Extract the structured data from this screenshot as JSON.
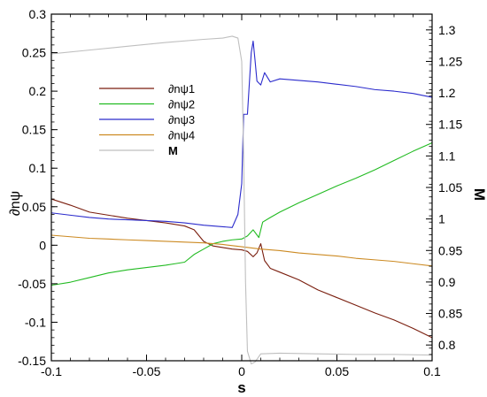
{
  "chart_data": {
    "type": "line",
    "title": "",
    "xlabel": "s",
    "ylabel": "∂nψ",
    "y2label": "M",
    "xlim": [
      -0.1,
      0.1
    ],
    "ylim": [
      -0.15,
      0.3
    ],
    "y2lim": [
      0.775,
      1.325
    ],
    "x_ticks": [
      -0.1,
      -0.05,
      0,
      0.05,
      0.1
    ],
    "x_tick_labels": [
      "-0.1",
      "-0.05",
      "0",
      "0.05",
      "0.1"
    ],
    "y_ticks": [
      -0.15,
      -0.1,
      -0.05,
      0,
      0.05,
      0.1,
      0.15,
      0.2,
      0.25,
      0.3
    ],
    "y_tick_labels": [
      "-0.15",
      "-0.1",
      "-0.05",
      "0",
      "0.05",
      "0.1",
      "0.15",
      "0.2",
      "0.25",
      "0.3"
    ],
    "y2_ticks": [
      0.8,
      0.85,
      0.9,
      0.95,
      1.0,
      1.05,
      1.1,
      1.15,
      1.2,
      1.25,
      1.3
    ],
    "y2_tick_labels": [
      "0.8",
      "0.85",
      "0.9",
      "0.95",
      "1",
      "1.05",
      "1.1",
      "1.15",
      "1.2",
      "1.25",
      "1.3"
    ],
    "grid": false,
    "legend_position": "upper-left",
    "series": [
      {
        "name": "∂nψ1",
        "axis": "left",
        "color": "#7a1e0e",
        "x": [
          -0.1,
          -0.09,
          -0.08,
          -0.07,
          -0.06,
          -0.05,
          -0.04,
          -0.03,
          -0.025,
          -0.02,
          -0.015,
          -0.01,
          -0.005,
          0.0,
          0.003,
          0.006,
          0.008,
          0.01,
          0.012,
          0.015,
          0.02,
          0.03,
          0.04,
          0.05,
          0.06,
          0.07,
          0.08,
          0.09,
          0.1
        ],
        "y": [
          0.06,
          0.052,
          0.043,
          0.039,
          0.035,
          0.032,
          0.029,
          0.025,
          0.02,
          0.005,
          -0.001,
          -0.003,
          -0.005,
          -0.006,
          -0.008,
          -0.015,
          -0.01,
          0.002,
          -0.02,
          -0.03,
          -0.035,
          -0.045,
          -0.058,
          -0.068,
          -0.078,
          -0.088,
          -0.097,
          -0.108,
          -0.12
        ]
      },
      {
        "name": "∂nψ2",
        "axis": "left",
        "color": "#22bb22",
        "x": [
          -0.1,
          -0.09,
          -0.08,
          -0.07,
          -0.06,
          -0.05,
          -0.04,
          -0.035,
          -0.03,
          -0.025,
          -0.02,
          -0.015,
          -0.01,
          -0.005,
          0.0,
          0.003,
          0.006,
          0.009,
          0.011,
          0.015,
          0.02,
          0.03,
          0.04,
          0.05,
          0.06,
          0.07,
          0.08,
          0.09,
          0.1
        ],
        "y": [
          -0.052,
          -0.048,
          -0.042,
          -0.036,
          -0.032,
          -0.029,
          -0.026,
          -0.024,
          -0.022,
          -0.012,
          -0.005,
          0.002,
          0.005,
          0.007,
          0.008,
          0.012,
          0.02,
          0.01,
          0.03,
          0.036,
          0.043,
          0.055,
          0.066,
          0.077,
          0.087,
          0.098,
          0.11,
          0.122,
          0.133
        ]
      },
      {
        "name": "∂nψ3",
        "axis": "left",
        "color": "#2b2bcc",
        "x": [
          -0.1,
          -0.09,
          -0.08,
          -0.07,
          -0.06,
          -0.05,
          -0.04,
          -0.03,
          -0.02,
          -0.01,
          -0.005,
          -0.002,
          0.0,
          0.001,
          0.003,
          0.005,
          0.006,
          0.007,
          0.008,
          0.01,
          0.012,
          0.015,
          0.02,
          0.03,
          0.04,
          0.05,
          0.06,
          0.07,
          0.08,
          0.09,
          0.1
        ],
        "y": [
          0.042,
          0.039,
          0.036,
          0.034,
          0.033,
          0.032,
          0.031,
          0.029,
          0.026,
          0.024,
          0.023,
          0.04,
          0.08,
          0.17,
          0.17,
          0.25,
          0.265,
          0.24,
          0.213,
          0.208,
          0.224,
          0.212,
          0.216,
          0.214,
          0.212,
          0.209,
          0.206,
          0.202,
          0.2,
          0.197,
          0.192
        ]
      },
      {
        "name": "∂nψ4",
        "axis": "left",
        "color": "#cc8a22",
        "x": [
          -0.1,
          -0.09,
          -0.08,
          -0.07,
          -0.06,
          -0.05,
          -0.04,
          -0.03,
          -0.02,
          -0.01,
          0.0,
          0.01,
          0.02,
          0.03,
          0.04,
          0.05,
          0.06,
          0.07,
          0.08,
          0.09,
          0.1
        ],
        "y": [
          0.013,
          0.011,
          0.009,
          0.008,
          0.007,
          0.006,
          0.005,
          0.004,
          0.003,
          0.001,
          -0.002,
          -0.005,
          -0.007,
          -0.01,
          -0.012,
          -0.014,
          -0.017,
          -0.019,
          -0.021,
          -0.024,
          -0.027
        ]
      },
      {
        "name": "M",
        "axis": "right",
        "color": "#bfbfbf",
        "x": [
          -0.1,
          -0.08,
          -0.06,
          -0.04,
          -0.02,
          -0.01,
          -0.005,
          -0.002,
          0.0,
          0.001,
          0.002,
          0.003,
          0.005,
          0.007,
          0.01,
          0.02,
          0.04,
          0.06,
          0.08,
          0.1
        ],
        "y": [
          1.262,
          1.268,
          1.274,
          1.28,
          1.285,
          1.287,
          1.29,
          1.287,
          1.25,
          1.1,
          0.9,
          0.79,
          0.77,
          0.773,
          0.786,
          0.787,
          0.786,
          0.785,
          0.785,
          0.784
        ]
      }
    ]
  }
}
